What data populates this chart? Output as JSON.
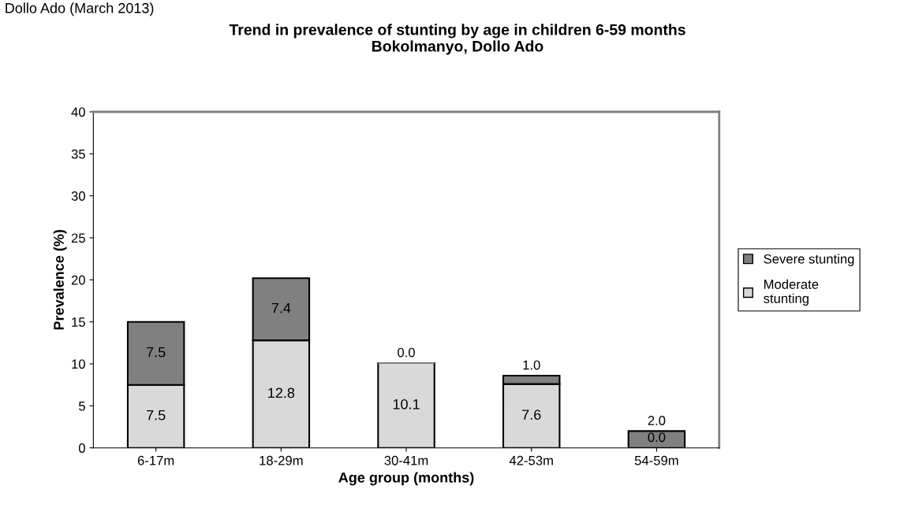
{
  "chart_data": {
    "type": "bar",
    "stacked": true,
    "title": "Trend in prevalence of stunting by age in children 6-59 months\nBokolmanyo, Dollo Ado",
    "xlabel": "Age group (months)",
    "ylabel": "Prevalence (%)",
    "categories": [
      "6-17m",
      "18-29m",
      "30-41m",
      "42-53m",
      "54-59m"
    ],
    "series": [
      {
        "name": "Moderate\nstunting",
        "color": "#d9d9d9",
        "values": [
          7.5,
          12.8,
          10.1,
          7.6,
          0.0
        ],
        "value_labels": [
          "7.5",
          "12.8",
          "10.1",
          "7.6",
          "0.0"
        ]
      },
      {
        "name": "Severe stunting",
        "color": "#808080",
        "values": [
          7.5,
          7.4,
          0.0,
          1.0,
          2.0
        ],
        "value_labels": [
          "7.5",
          "7.4",
          "0.0",
          "1.0",
          "2.0"
        ]
      }
    ],
    "ylim": [
      0,
      40
    ],
    "yticks": [
      0,
      5,
      10,
      15,
      20,
      25,
      30,
      35,
      40
    ],
    "grid": false,
    "legend": "right",
    "data_labels": true,
    "annotations": [
      "Dollo Ado (March 2013)"
    ]
  }
}
